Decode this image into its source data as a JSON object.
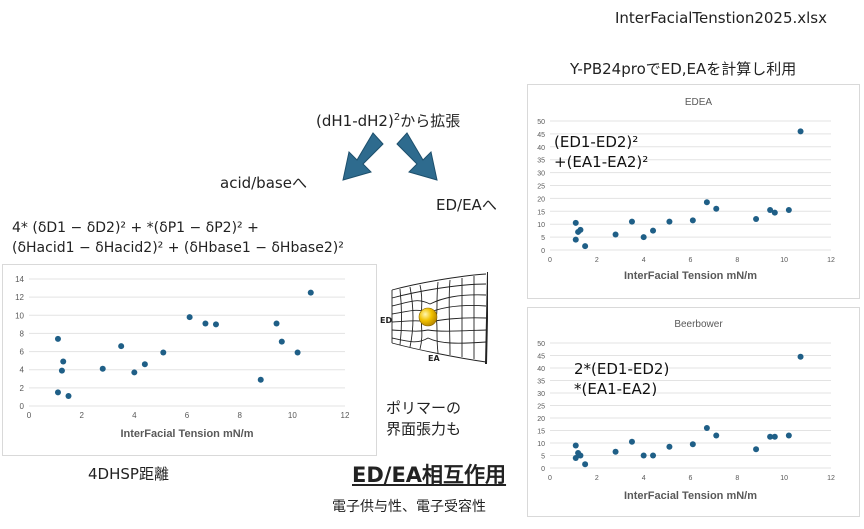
{
  "header": {
    "filename": "InterFacialTenstion2025.xlsx",
    "note": "Y-PB24proでED,EAを計算し利用"
  },
  "flow": {
    "source": "(dH1-dH2)",
    "source_sup": "2",
    "source_suffix": "から拡張",
    "left_label": "acid/baseへ",
    "right_label": "ED/EAへ",
    "arrow_color": "#2e6b8e"
  },
  "formula_left": {
    "line1": "4* (δD1 − δD2)² + *(δP1 − δP2)² +",
    "line2": "(δHacid1 − δHacid2)² + (δHbase1 − δHbase2)²"
  },
  "illustration": {
    "ed_label": "ED",
    "ea_label": "EA",
    "caption_line1": "ポリマーの",
    "caption_line2": "界面張力も"
  },
  "footer": {
    "left_caption": "4DHSP距離",
    "title": "ED/EA相互作用",
    "subtitle": "電子供与性、電子受容性"
  },
  "chart_data": [
    {
      "id": "hsp",
      "type": "scatter",
      "title": "",
      "xlabel": "InterFacial Tension mN/m",
      "ylabel": "",
      "xlim": [
        0,
        12
      ],
      "ylim": [
        0,
        14
      ],
      "xticks": [
        0,
        2,
        4,
        6,
        8,
        10,
        12
      ],
      "yticks": [
        0,
        2,
        4,
        6,
        8,
        10,
        12,
        14
      ],
      "grid": true,
      "color": "#1f5f87",
      "points": [
        [
          1.1,
          7.4
        ],
        [
          1.3,
          4.9
        ],
        [
          1.25,
          3.9
        ],
        [
          1.1,
          1.5
        ],
        [
          1.5,
          1.1
        ],
        [
          2.8,
          4.1
        ],
        [
          3.5,
          6.6
        ],
        [
          4.0,
          3.7
        ],
        [
          4.4,
          4.6
        ],
        [
          5.1,
          5.9
        ],
        [
          6.1,
          9.8
        ],
        [
          6.7,
          9.1
        ],
        [
          7.1,
          9.0
        ],
        [
          8.8,
          2.9
        ],
        [
          9.4,
          9.1
        ],
        [
          9.6,
          7.1
        ],
        [
          10.2,
          5.9
        ],
        [
          10.7,
          12.5
        ]
      ],
      "annotation": []
    },
    {
      "id": "edea",
      "type": "scatter",
      "title": "EDEA",
      "xlabel": "InterFacial Tension mN/m",
      "ylabel": "",
      "xlim": [
        0,
        12
      ],
      "ylim": [
        0,
        50
      ],
      "xticks": [
        0,
        2,
        4,
        6,
        8,
        10,
        12
      ],
      "yticks": [
        0,
        5,
        10,
        15,
        20,
        25,
        30,
        35,
        40,
        45,
        50
      ],
      "grid": true,
      "color": "#1f5f87",
      "points": [
        [
          1.1,
          10.5
        ],
        [
          1.2,
          7.0
        ],
        [
          1.3,
          7.8
        ],
        [
          1.1,
          4.0
        ],
        [
          1.5,
          1.5
        ],
        [
          2.8,
          6.0
        ],
        [
          3.5,
          11.0
        ],
        [
          4.0,
          5.0
        ],
        [
          4.4,
          7.5
        ],
        [
          5.1,
          11.0
        ],
        [
          6.1,
          11.5
        ],
        [
          6.7,
          18.5
        ],
        [
          7.1,
          16.0
        ],
        [
          8.8,
          12.0
        ],
        [
          9.4,
          15.5
        ],
        [
          9.6,
          14.5
        ],
        [
          10.2,
          15.5
        ],
        [
          10.7,
          46.0
        ]
      ],
      "annotation": [
        "(ED1-ED2)²",
        "+(EA1-EA2)²"
      ]
    },
    {
      "id": "beerbower",
      "type": "scatter",
      "title": "Beerbower",
      "xlabel": "InterFacial Tension mN/m",
      "ylabel": "",
      "xlim": [
        0,
        12
      ],
      "ylim": [
        0,
        50
      ],
      "xticks": [
        0,
        2,
        4,
        6,
        8,
        10,
        12
      ],
      "yticks": [
        0,
        5,
        10,
        15,
        20,
        25,
        30,
        35,
        40,
        45,
        50
      ],
      "grid": true,
      "color": "#1f5f87",
      "points": [
        [
          1.1,
          9.0
        ],
        [
          1.2,
          6.0
        ],
        [
          1.3,
          5.0
        ],
        [
          1.1,
          4.0
        ],
        [
          1.5,
          1.5
        ],
        [
          2.8,
          6.5
        ],
        [
          3.5,
          10.5
        ],
        [
          4.0,
          5.0
        ],
        [
          4.4,
          5.0
        ],
        [
          5.1,
          8.5
        ],
        [
          6.1,
          9.5
        ],
        [
          6.7,
          16.0
        ],
        [
          7.1,
          13.0
        ],
        [
          8.8,
          7.5
        ],
        [
          9.4,
          12.5
        ],
        [
          9.6,
          12.5
        ],
        [
          10.2,
          13.0
        ],
        [
          10.7,
          44.5
        ]
      ],
      "annotation": [
        "2*(ED1-ED2)",
        "*(EA1-EA2)"
      ]
    }
  ]
}
